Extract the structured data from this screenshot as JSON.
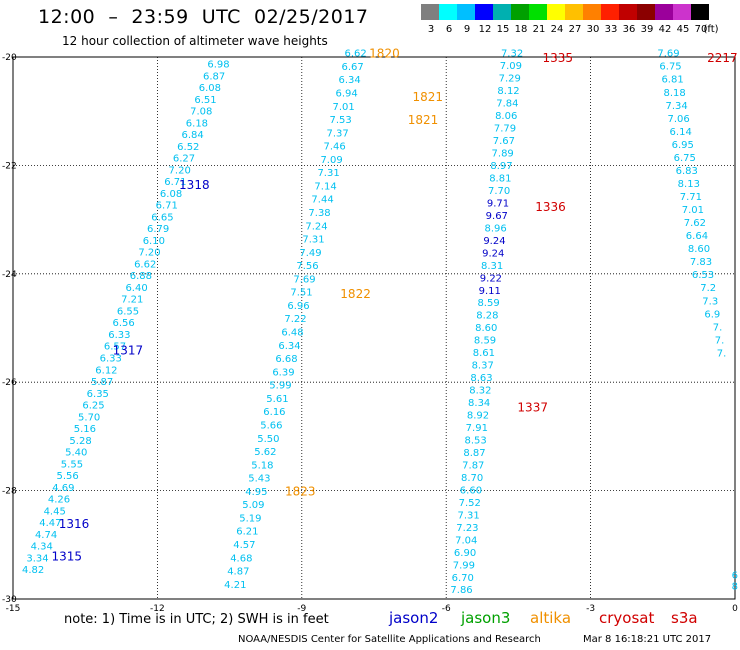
{
  "header": {
    "title": "12:00  –  23:59  UTC  02/25/2017",
    "subtitle": "12 hour collection of altimeter wave heights"
  },
  "colorbar": {
    "unit": "(ft)",
    "labels": [
      "3",
      "6",
      "9",
      "12",
      "15",
      "18",
      "21",
      "24",
      "27",
      "30",
      "33",
      "36",
      "39",
      "42",
      "45",
      "70"
    ],
    "colors": [
      "#7f7f7f",
      "#00ffff",
      "#00bfff",
      "#0000ff",
      "#00b0b0",
      "#00a000",
      "#00e000",
      "#ffff00",
      "#ffc000",
      "#ff8000",
      "#ff2000",
      "#c00000",
      "#8b0000",
      "#9b009b",
      "#cc33cc",
      "#000000"
    ]
  },
  "axes": {
    "x_ticks": [
      -15,
      -12,
      -9,
      -6,
      -3,
      0
    ],
    "y_ticks": [
      -20,
      -22,
      -24,
      -26,
      -28,
      -30
    ],
    "xlim": [
      -15,
      0
    ],
    "ylim": [
      -30,
      -20
    ],
    "grid": true
  },
  "colors": {
    "cyan": "#00c0f0",
    "jason2": "#0000c8",
    "jason3": "#00a000",
    "altika": "#f09000",
    "cryosat": "#d00000",
    "s3a": "#d00000"
  },
  "tracks": [
    {
      "values": [
        "6.98",
        "6.87",
        "6.08",
        "6.51",
        "7.08",
        "6.18",
        "6.84",
        "6.52",
        "6.27",
        "7.20",
        "6.71",
        "6.08",
        "6.71",
        "6.65",
        "6.79",
        "6.10",
        "7.20",
        "6.62",
        "6.88",
        "6.40",
        "7.21",
        "6.55",
        "6.56",
        "6.33",
        "6.57",
        "6.33",
        "6.12",
        "5.87",
        "6.35",
        "6.25",
        "5.70",
        "5.16",
        "5.28",
        "5.40",
        "5.55",
        "5.56",
        "4.69",
        "4.26",
        "4.45",
        "4.47",
        "4.74",
        "4.34",
        "3.34",
        "4.82"
      ],
      "lat_start": -20.12,
      "lat_end": -29.45,
      "lon_start": -10.5,
      "lon_end": -14.35
    },
    {
      "values": [
        "6.62",
        "6.67",
        "6.34",
        "6.94",
        "7.01",
        "7.53",
        "7.37",
        "7.46",
        "7.09",
        "7.31",
        "7.14",
        "7.44",
        "7.38",
        "7.24",
        "7.31",
        "7.49",
        "7.56",
        "7.69",
        "7.51",
        "6.96",
        "7.22",
        "6.48",
        "6.34",
        "6.68",
        "6.39",
        "5.99",
        "5.61",
        "6.16",
        "5.66",
        "5.50",
        "5.62",
        "5.18",
        "5.43",
        "4.95",
        "5.09",
        "5.19",
        "6.21",
        "4.57",
        "4.68",
        "4.87",
        "4.21"
      ],
      "lat_start": -19.92,
      "lat_end": -29.72,
      "lon_start": -7.65,
      "lon_end": -10.15
    },
    {
      "values": [
        "7.32",
        "7.09",
        "7.29",
        "8.12",
        "7.84",
        "8.06",
        "7.79",
        "7.67",
        "7.89",
        "8.97",
        "8.81",
        "7.70",
        "9.71",
        "9.67",
        "8.96",
        "9.24",
        "9.24",
        "8.31",
        "9.22",
        "9.11",
        "8.59",
        "8.28",
        "8.60",
        "8.59",
        "8.61",
        "8.37",
        "8.63",
        "8.32",
        "8.34",
        "8.92",
        "7.91",
        "8.53",
        "8.87",
        "7.87",
        "8.70",
        "6.60",
        "7.52",
        "7.31",
        "7.23",
        "7.04",
        "6.90",
        "7.99",
        "6.70",
        "7.86"
      ],
      "lat_start": -19.92,
      "lat_end": -29.82,
      "lon_start": -4.4,
      "lon_end": -5.45,
      "dark": [
        12,
        13,
        15,
        16,
        18,
        19
      ]
    },
    {
      "values": [
        "7.69",
        "6.75",
        "6.81",
        "8.18",
        "7.34",
        "7.06",
        "6.14",
        "6.95",
        "6.75",
        "6.83",
        "8.13",
        "7.71",
        "7.01",
        "7.62",
        "6.64",
        "8.60",
        "7.83",
        "6.53",
        "7.2",
        "7.3",
        "6.9",
        "7.",
        "7.",
        "7."
      ],
      "lat_start": -19.92,
      "lat_end": -25.45,
      "lon_start": -1.15,
      "lon_end": -0.18
    }
  ],
  "labels": [
    {
      "text": "1820",
      "lon": -7.6,
      "lat": -19.92,
      "sat": "altika"
    },
    {
      "text": "1821",
      "lon": -6.7,
      "lat": -20.72,
      "sat": "altika"
    },
    {
      "text": "1821",
      "lon": -6.8,
      "lat": -21.14,
      "sat": "altika"
    },
    {
      "text": "1822",
      "lon": -8.2,
      "lat": -24.35,
      "sat": "altika"
    },
    {
      "text": "1823",
      "lon": -9.35,
      "lat": -28.0,
      "sat": "altika"
    },
    {
      "text": "1335",
      "lon": -4.0,
      "lat": -20.0,
      "sat": "cryosat"
    },
    {
      "text": "1336",
      "lon": -4.15,
      "lat": -22.75,
      "sat": "cryosat"
    },
    {
      "text": "1337",
      "lon": -4.52,
      "lat": -26.45,
      "sat": "cryosat"
    },
    {
      "text": "2217",
      "lon": -0.58,
      "lat": -20.0,
      "sat": "s3a"
    },
    {
      "text": "1318",
      "lon": -11.55,
      "lat": -22.34,
      "sat": "jason2"
    },
    {
      "text": "1317",
      "lon": -12.93,
      "lat": -25.4,
      "sat": "jason2"
    },
    {
      "text": "1316",
      "lon": -14.05,
      "lat": -28.6,
      "sat": "jason2"
    },
    {
      "text": "1315",
      "lon": -14.2,
      "lat": -29.2,
      "sat": "jason2"
    }
  ],
  "bottom_right_values": [
    {
      "text": "6",
      "lon": -0.07,
      "lat": -29.55
    },
    {
      "text": "8",
      "lon": -0.07,
      "lat": -29.75
    }
  ],
  "footer": {
    "note": "note:  1) Time is in UTC;  2) SWH is in feet",
    "legend": [
      {
        "name": "jason2",
        "sat": "jason2"
      },
      {
        "name": "jason3",
        "sat": "jason3"
      },
      {
        "name": "altika",
        "sat": "altika"
      },
      {
        "name": "cryosat",
        "sat": "cryosat"
      },
      {
        "name": "s3a",
        "sat": "s3a"
      }
    ],
    "credit": "NOAA/NESDIS Center for Satellite Applications and Research",
    "timestamp": "Mar  8 16:18:21 UTC 2017"
  }
}
